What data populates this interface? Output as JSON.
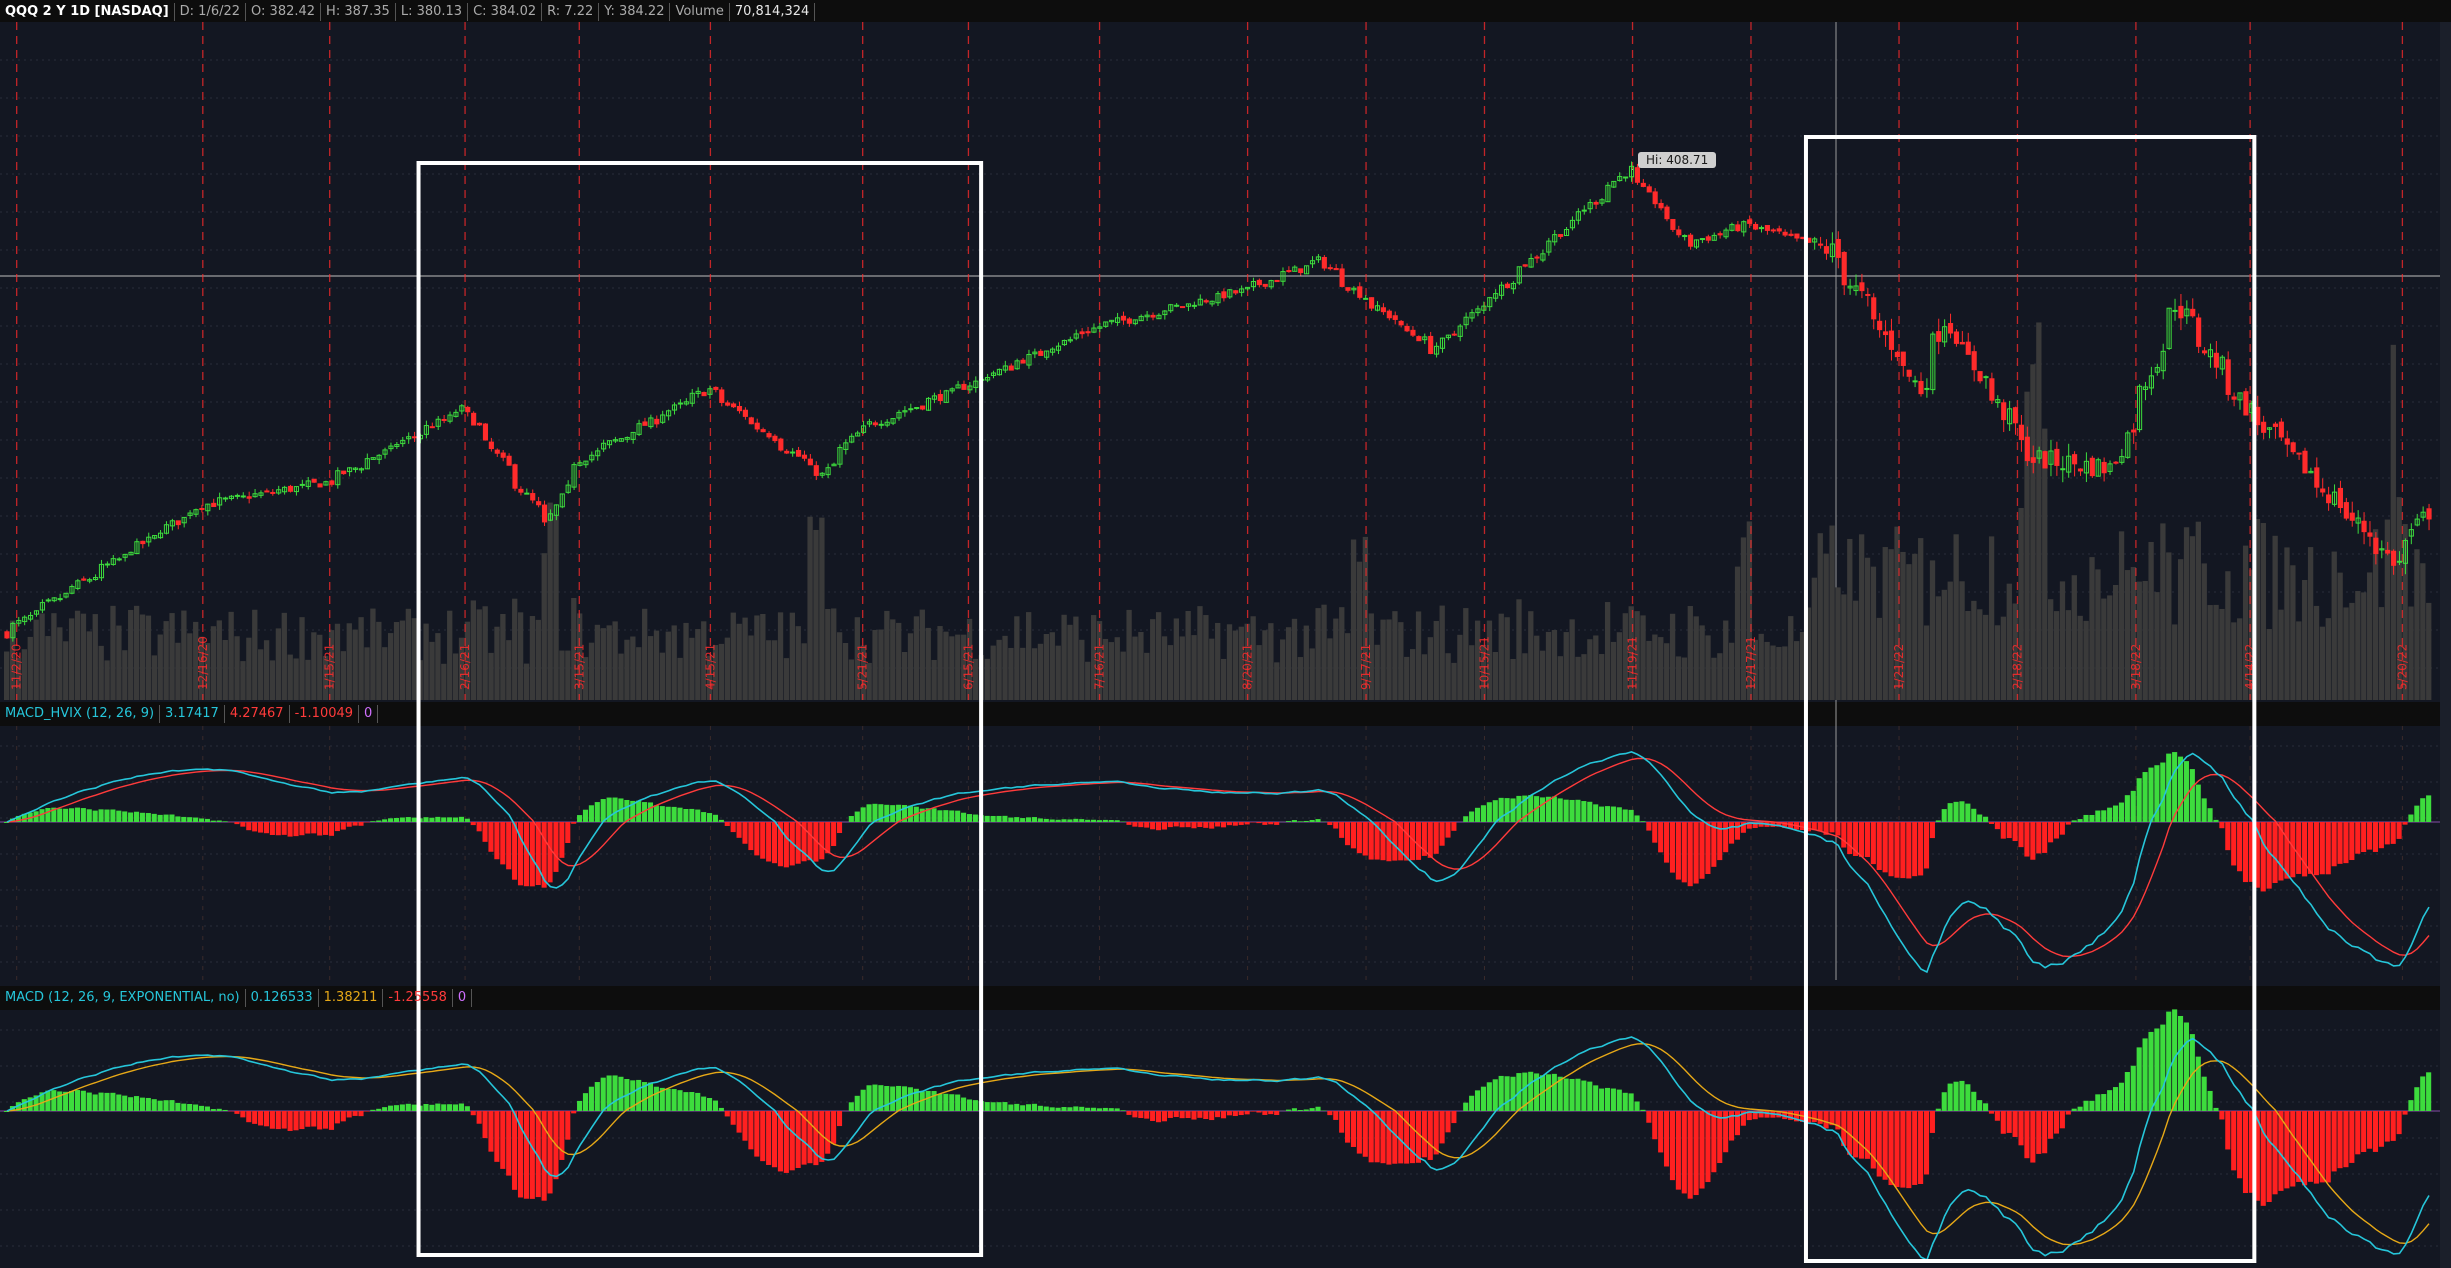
{
  "header": {
    "symbol": "QQQ 2 Y 1D [NASDAQ]",
    "d": "D: 1/6/22",
    "o": "O: 382.42",
    "h": "H: 387.35",
    "l": "L: 380.13",
    "c": "C: 384.02",
    "r": "R: 7.22",
    "y": "Y: 384.22",
    "volume_label": "Volume",
    "volume_value": "70,814,324"
  },
  "hi_label": "Hi: 408.71",
  "indicator1": {
    "title": "MACD_HVIX (12, 26, 9)",
    "value": "3.17417",
    "avg": "4.27467",
    "diff": "-1.10049",
    "zero": "0"
  },
  "indicator2": {
    "title": "MACD (12, 26, 9, EXPONENTIAL, no)",
    "value": "0.126533",
    "avg": "1.38211",
    "diff": "-1.25558",
    "zero": "0"
  },
  "colors": {
    "background": "#131722",
    "up_candle": "#3ddc3d",
    "down_candle": "#ff2b2b",
    "volume": "#3a3a3a",
    "macd_line": "#26c6da",
    "hvix_signal": "#ff3b3b",
    "macd_signal": "#e6a817",
    "hist_up": "#3ddc3d",
    "hist_down": "#ff2020",
    "period_marker": "#ff2b2b",
    "highlight_box": "#ffffff"
  },
  "chart_data": [
    {
      "type": "candlestick",
      "title": "QQQ 2 Y 1D [NASDAQ]",
      "x_date_labels": [
        "11/2/20",
        "12/16/20",
        "1/15/21",
        "2/16/21",
        "3/15/21",
        "4/15/21",
        "5/21/21",
        "6/15/21",
        "7/16/21",
        "8/20/21",
        "9/17/21",
        "10/15/21",
        "11/19/21",
        "12/17/21",
        "1/21/22",
        "2/18/22",
        "3/18/22",
        "4/14/22",
        "5/20/22"
      ],
      "hi_marker": 408.71,
      "close_path": [
        {
          "date": "10/30/20",
          "close": 268
        },
        {
          "date": "12/16/20",
          "close": 307
        },
        {
          "date": "1/15/21",
          "close": 314
        },
        {
          "date": "2/16/21",
          "close": 336
        },
        {
          "date": "3/8/21",
          "close": 301
        },
        {
          "date": "3/15/21",
          "close": 320
        },
        {
          "date": "4/15/21",
          "close": 342
        },
        {
          "date": "5/12/21",
          "close": 316
        },
        {
          "date": "5/21/21",
          "close": 330
        },
        {
          "date": "6/15/21",
          "close": 343
        },
        {
          "date": "7/16/21",
          "close": 361
        },
        {
          "date": "8/20/21",
          "close": 372
        },
        {
          "date": "9/7/21",
          "close": 381
        },
        {
          "date": "9/17/21",
          "close": 370
        },
        {
          "date": "10/4/21",
          "close": 354
        },
        {
          "date": "10/15/21",
          "close": 367
        },
        {
          "date": "11/19/21",
          "close": 408.71
        },
        {
          "date": "12/3/21",
          "close": 386
        },
        {
          "date": "12/17/21",
          "close": 392
        },
        {
          "date": "1/6/22",
          "close": 384.02
        },
        {
          "date": "1/27/22",
          "close": 342
        },
        {
          "date": "2/2/22",
          "close": 363
        },
        {
          "date": "2/23/22",
          "close": 321
        },
        {
          "date": "3/14/22",
          "close": 318
        },
        {
          "date": "3/29/22",
          "close": 368
        },
        {
          "date": "4/14/22",
          "close": 337
        },
        {
          "date": "5/20/22",
          "close": 289
        },
        {
          "date": "5/27/22",
          "close": 305
        }
      ],
      "ylim": [
        260,
        410
      ]
    },
    {
      "type": "line",
      "title": "MACD_HVIX (12, 26, 9)",
      "series": [
        {
          "name": "MACD_HVIX",
          "last": 3.17417
        },
        {
          "name": "Avg",
          "last": 4.27467
        },
        {
          "name": "Diff",
          "last": -1.10049
        }
      ]
    },
    {
      "type": "line",
      "title": "MACD (12, 26, 9, EXPONENTIAL, no)",
      "series": [
        {
          "name": "Value",
          "last": 0.126533
        },
        {
          "name": "Avg",
          "last": 1.38211
        },
        {
          "name": "Diff",
          "last": -1.25558
        }
      ]
    }
  ]
}
